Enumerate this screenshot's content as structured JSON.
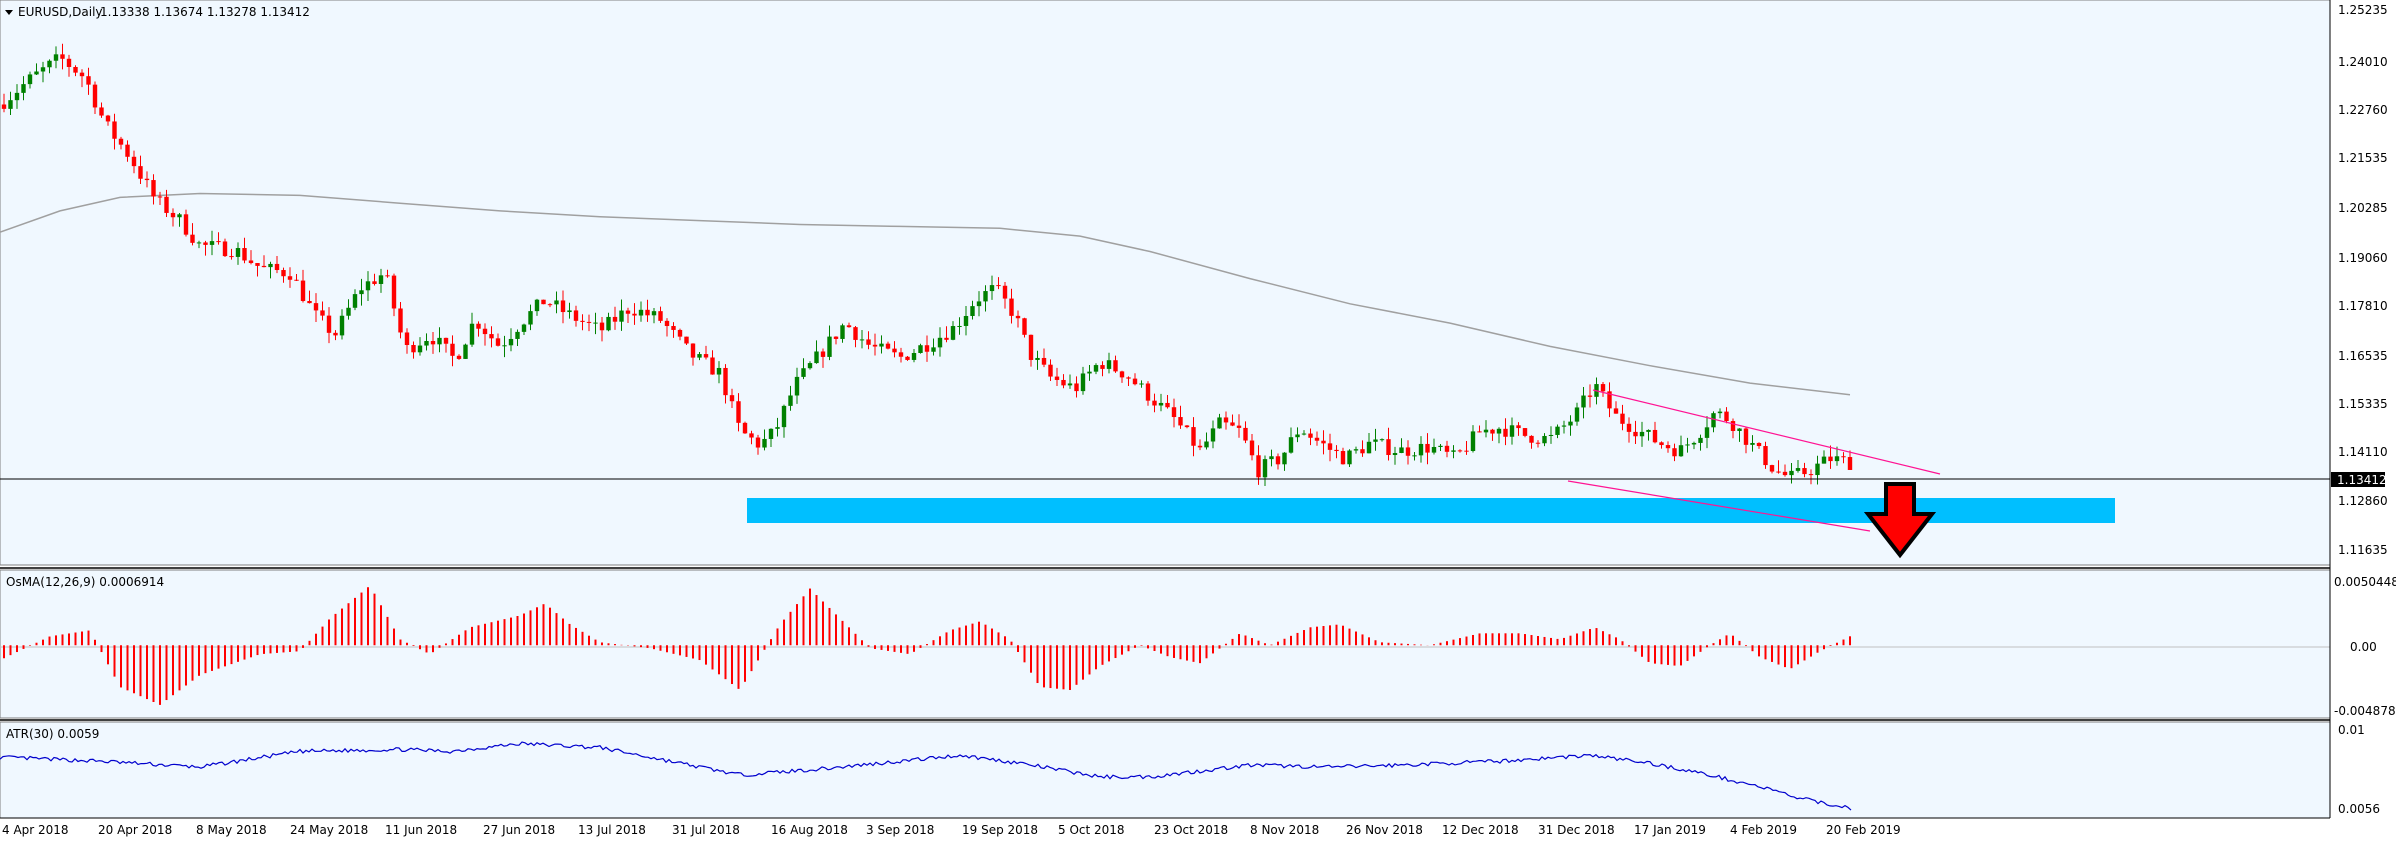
{
  "header": {
    "symbol_title": "EURUSD,Daily",
    "ohlc": "1.13338 1.13674 1.13278 1.13412"
  },
  "indicators": {
    "osma_label": "OsMA(12,26,9) 0.0006914",
    "atr_label": "ATR(30) 0.0059"
  },
  "price_axis": {
    "ticks": [
      "1.25235",
      "1.24010",
      "1.22760",
      "1.21535",
      "1.20285",
      "1.19060",
      "1.17810",
      "1.16535",
      "1.15335",
      "1.14110",
      "1.12860",
      "1.11635"
    ],
    "current_price": "1.13412"
  },
  "osma_axis": {
    "ticks": [
      "0.0050448",
      "0.00",
      "-0.0048784"
    ]
  },
  "atr_axis": {
    "ticks": [
      "0.01",
      "0.0056"
    ]
  },
  "time_axis": {
    "labels": [
      "4 Apr 2018",
      "20 Apr 2018",
      "8 May 2018",
      "24 May 2018",
      "11 Jun 2018",
      "27 Jun 2018",
      "13 Jul 2018",
      "31 Jul 2018",
      "16 Aug 2018",
      "3 Sep 2018",
      "19 Sep 2018",
      "5 Oct 2018",
      "23 Oct 2018",
      "8 Nov 2018",
      "26 Nov 2018",
      "12 Dec 2018",
      "31 Dec 2018",
      "17 Jan 2019",
      "4 Feb 2019",
      "20 Feb 2019"
    ]
  },
  "colors": {
    "background": "#F0F8FF",
    "bull_candle": "#008000",
    "bear_candle": "#FF0000",
    "moving_average": "#A0A0A0",
    "support_zone": "#00BFFF",
    "channel_lines": "#FF1493",
    "arrow": "#FF0000",
    "atr_line": "#0000CD",
    "osma_bars": "#FF0000"
  },
  "chart_data": {
    "type": "candlestick",
    "symbol": "EURUSD",
    "timeframe": "Daily",
    "last_bar": {
      "open": 1.13338,
      "high": 1.13674,
      "low": 1.13278,
      "close": 1.13412
    },
    "price_range": [
      1.1075,
      1.2535
    ],
    "support_zone": [
      1.1235,
      1.1288
    ],
    "trend_channel": {
      "upper": {
        "from": [
          "31 Dec 2018",
          1.1568
        ],
        "to": [
          "25 Feb 2019",
          1.1365
        ]
      },
      "lower": {
        "from": [
          "31 Dec 2018",
          1.1335
        ],
        "to": [
          "25 Feb 2019",
          1.1195
        ]
      }
    },
    "annotation": "down-arrow",
    "osma": {
      "current": 0.0006914,
      "range": [
        -0.0048784,
        0.0050448
      ]
    },
    "atr": {
      "current": 0.0059,
      "range": [
        0.0054,
        0.0103
      ]
    }
  }
}
